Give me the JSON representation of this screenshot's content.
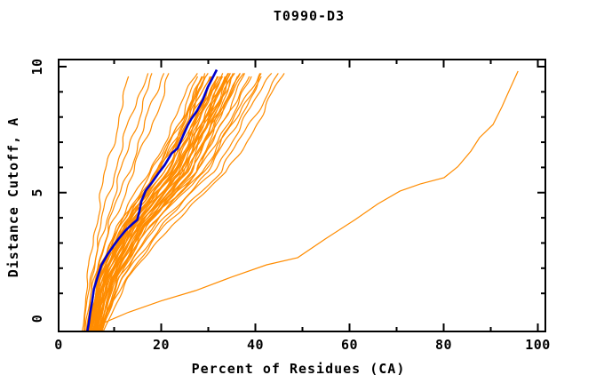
{
  "chart_data": {
    "type": "line",
    "title": "T0990-D3",
    "xlabel": "Percent of Residues (CA)",
    "ylabel": "Distance Cutoff, A",
    "xlim": [
      0,
      100
    ],
    "ylim": [
      0,
      10
    ],
    "grid": false,
    "legend": false,
    "x_major_ticks": [
      0,
      20,
      40,
      60,
      80,
      100
    ],
    "x_minor_ticks": [
      10,
      30,
      50,
      70,
      90
    ],
    "y_major_ticks": [
      0,
      5,
      10
    ],
    "y_minor_ticks": [
      1,
      2,
      3,
      4,
      6,
      7,
      8,
      9
    ],
    "colors": {
      "model_lines": "#FF8C00",
      "median_line": "#0000CD",
      "axis": "#000000",
      "background": "#FFFFFF"
    },
    "series": {
      "median_model": {
        "name": "highlighted model (blue)",
        "color_key": "median_line",
        "points": [
          [
            4.3,
            0.0
          ],
          [
            4.6,
            0.3
          ],
          [
            4.9,
            0.7
          ],
          [
            5.3,
            1.1
          ],
          [
            5.7,
            1.6
          ],
          [
            6.4,
            2.0
          ],
          [
            7.3,
            2.5
          ],
          [
            8.6,
            2.9
          ],
          [
            9.8,
            3.2
          ],
          [
            11.0,
            3.5
          ],
          [
            12.4,
            3.8
          ],
          [
            13.9,
            4.05
          ],
          [
            14.9,
            4.2
          ],
          [
            15.4,
            4.55
          ],
          [
            15.8,
            4.9
          ],
          [
            16.7,
            5.3
          ],
          [
            18.0,
            5.6
          ],
          [
            19.4,
            5.95
          ],
          [
            20.7,
            6.25
          ],
          [
            22.2,
            6.7
          ],
          [
            23.5,
            6.9
          ],
          [
            24.6,
            7.35
          ],
          [
            25.6,
            7.75
          ],
          [
            26.4,
            8.0
          ],
          [
            27.6,
            8.3
          ],
          [
            28.8,
            8.7
          ],
          [
            29.9,
            9.2
          ],
          [
            30.8,
            9.5
          ],
          [
            31.8,
            9.85
          ]
        ]
      },
      "outlier_model": {
        "name": "far-right outlier model (orange)",
        "color_key": "model_lines",
        "points": [
          [
            6.2,
            0.1
          ],
          [
            7.1,
            0.27
          ],
          [
            13.0,
            0.72
          ],
          [
            20.0,
            1.15
          ],
          [
            27.3,
            1.54
          ],
          [
            35.0,
            2.05
          ],
          [
            42.4,
            2.51
          ],
          [
            49.0,
            2.78
          ],
          [
            55.0,
            3.5
          ],
          [
            61.2,
            4.21
          ],
          [
            66.0,
            4.8
          ],
          [
            70.7,
            5.28
          ],
          [
            75.0,
            5.55
          ],
          [
            80.1,
            5.79
          ],
          [
            83.0,
            6.2
          ],
          [
            85.8,
            6.79
          ],
          [
            87.6,
            7.29
          ],
          [
            90.5,
            7.79
          ],
          [
            92.4,
            8.46
          ],
          [
            93.5,
            8.9
          ],
          [
            95.8,
            9.8
          ]
        ]
      },
      "model_bundle": {
        "name": "server model curves (orange bundle)",
        "color_key": "model_lines",
        "control_cutoffs": [
          0,
          2,
          4,
          6,
          8,
          9.8
        ],
        "curves_percent_at_cutoff": [
          [
            3.2,
            4.4,
            6.0,
            8.2,
            11.0,
            13.6
          ],
          [
            3.5,
            5.0,
            7.2,
            10.0,
            13.5,
            17.0
          ],
          [
            3.8,
            5.3,
            8.0,
            11.5,
            15.0,
            18.5
          ],
          [
            4.0,
            5.8,
            8.8,
            13.0,
            17.0,
            20.5
          ],
          [
            4.2,
            6.0,
            9.5,
            14.0,
            18.5,
            22.0
          ],
          [
            4.5,
            6.2,
            10.5,
            17.5,
            23.0,
            27.5
          ],
          [
            4.8,
            6.8,
            11.5,
            19.0,
            24.5,
            29.0
          ],
          [
            5.0,
            7.0,
            12.0,
            20.0,
            25.5,
            30.0
          ],
          [
            5.2,
            7.4,
            12.8,
            21.0,
            26.5,
            31.0
          ],
          [
            5.5,
            7.8,
            13.3,
            21.8,
            27.3,
            32.0
          ],
          [
            5.7,
            8.0,
            13.8,
            22.5,
            28.0,
            32.8
          ],
          [
            6.0,
            8.4,
            14.3,
            23.2,
            28.8,
            33.5
          ],
          [
            6.2,
            8.8,
            14.8,
            24.0,
            29.5,
            34.3
          ],
          [
            6.5,
            9.2,
            15.4,
            24.8,
            30.3,
            35.0
          ],
          [
            6.8,
            9.6,
            16.0,
            25.5,
            31.0,
            35.8
          ],
          [
            7.0,
            10.0,
            16.6,
            26.2,
            31.8,
            36.5
          ],
          [
            4.4,
            6.5,
            11.0,
            18.2,
            24.0,
            28.3
          ],
          [
            4.7,
            7.2,
            12.2,
            20.5,
            26.0,
            30.5
          ],
          [
            5.1,
            7.6,
            13.0,
            21.4,
            27.0,
            31.5
          ],
          [
            5.4,
            8.2,
            14.0,
            23.0,
            28.5,
            33.0
          ],
          [
            5.8,
            8.6,
            14.6,
            23.6,
            29.2,
            34.0
          ],
          [
            6.1,
            9.0,
            15.1,
            24.4,
            30.0,
            34.6
          ],
          [
            6.4,
            9.4,
            15.7,
            25.2,
            30.7,
            35.4
          ],
          [
            6.7,
            9.8,
            16.3,
            25.8,
            31.4,
            36.2
          ],
          [
            7.2,
            10.4,
            17.2,
            27.0,
            32.5,
            37.2
          ],
          [
            7.4,
            10.8,
            17.8,
            27.6,
            33.2,
            38.0
          ],
          [
            4.9,
            7.3,
            12.5,
            20.8,
            26.3,
            30.8
          ],
          [
            5.3,
            7.9,
            13.5,
            22.2,
            27.8,
            32.4
          ],
          [
            5.9,
            8.3,
            14.1,
            23.4,
            29.0,
            33.8
          ],
          [
            6.9,
            10.2,
            17.0,
            27.2,
            33.8,
            39.0
          ],
          [
            7.1,
            10.6,
            17.6,
            28.0,
            34.5,
            40.0
          ],
          [
            7.3,
            11.0,
            18.4,
            29.0,
            35.5,
            41.0
          ],
          [
            7.5,
            11.4,
            19.2,
            30.0,
            36.5,
            42.0
          ],
          [
            7.0,
            11.8,
            20.0,
            31.0,
            37.8,
            43.5
          ],
          [
            6.6,
            12.4,
            21.0,
            32.5,
            39.5,
            45.0
          ],
          [
            7.6,
            13.0,
            22.0,
            34.0,
            41.0,
            46.2
          ],
          [
            5.6,
            9.9,
            16.8,
            28.5,
            36.0,
            41.5
          ],
          [
            4.6,
            6.6,
            11.8,
            19.5,
            25.0,
            29.5
          ],
          [
            5.0,
            7.5,
            12.6,
            21.6,
            27.5,
            32.2
          ],
          [
            6.3,
            9.1,
            15.5,
            25.0,
            30.5,
            35.6
          ],
          [
            5.5,
            8.1,
            13.6,
            22.8,
            28.3,
            33.2
          ],
          [
            4.4,
            6.9,
            11.2,
            18.8,
            24.8,
            29.8
          ],
          [
            6.0,
            8.9,
            15.0,
            24.6,
            30.0,
            34.8
          ],
          [
            6.6,
            9.5,
            16.2,
            26.0,
            31.6,
            36.8
          ],
          [
            4.8,
            7.1,
            12.1,
            19.8,
            25.8,
            30.2
          ],
          [
            5.6,
            8.5,
            14.4,
            23.8,
            29.6,
            34.4
          ],
          [
            6.9,
            9.7,
            16.5,
            26.5,
            32.0,
            37.0
          ],
          [
            5.2,
            7.7,
            13.2,
            22.0,
            27.6,
            32.6
          ],
          [
            6.1,
            8.7,
            15.2,
            24.2,
            29.8,
            34.9
          ],
          [
            4.5,
            6.7,
            11.6,
            19.2,
            25.2,
            29.2
          ]
        ]
      }
    }
  }
}
